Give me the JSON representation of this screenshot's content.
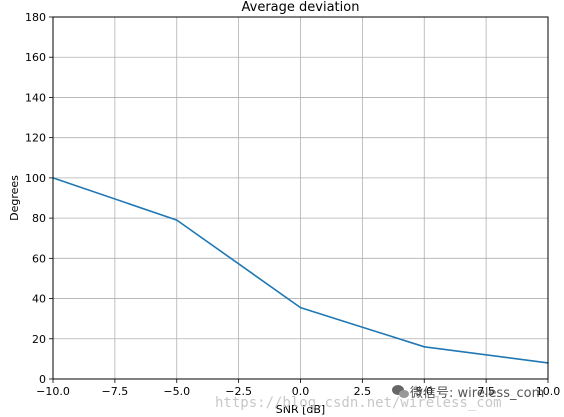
{
  "chart_data": {
    "type": "line",
    "title": "Average deviation",
    "xlabel": "SNR [dB]",
    "ylabel": "Degrees",
    "xlim": [
      -10.0,
      10.0
    ],
    "ylim": [
      0,
      180
    ],
    "xticks": [
      "−10.0",
      "−7.5",
      "−5.0",
      "−2.5",
      "0.0",
      "2.5",
      "5.0",
      "7.5",
      "10.0"
    ],
    "yticks": [
      "0",
      "20",
      "40",
      "60",
      "80",
      "100",
      "120",
      "140",
      "160",
      "180"
    ],
    "grid": true,
    "series": [
      {
        "x": [
          -10,
          -5,
          0,
          5,
          10
        ],
        "y": [
          100,
          79,
          35.5,
          16,
          8
        ],
        "color": "#1f77b4"
      }
    ]
  },
  "watermark": {
    "url": "https://blog.csdn.net/wireless_com",
    "handle": "微信号: wireless_com"
  }
}
